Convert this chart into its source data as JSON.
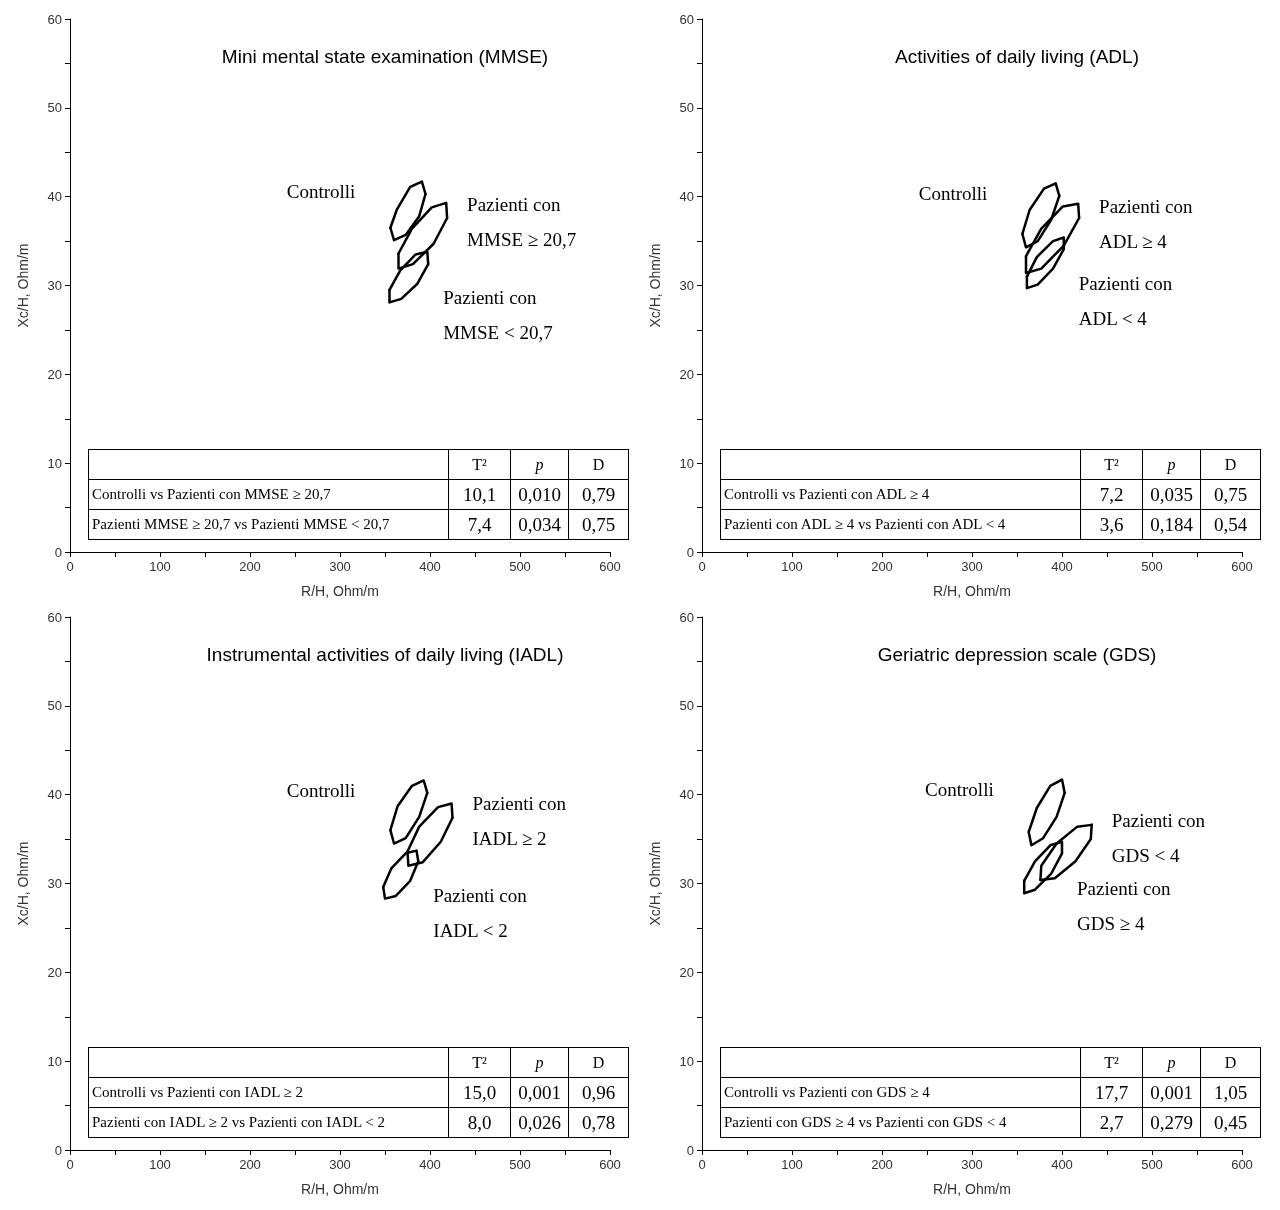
{
  "chart_data": [
    {
      "type": "line",
      "title": "Mini mental state examination (MMSE)",
      "xlabel": "R/H, Ohm/m",
      "ylabel": "Xc/H, Ohm/m",
      "xlim": [
        0,
        600
      ],
      "ylim": [
        0,
        60
      ],
      "xticks": [
        0,
        {
          "value": 50,
          "label": null
        },
        100,
        {
          "value": 150,
          "label": null
        },
        200,
        {
          "value": 250,
          "label": null
        },
        300,
        {
          "value": 350,
          "label": null
        },
        400,
        {
          "value": 450,
          "label": null
        },
        500,
        {
          "value": 550,
          "label": null
        },
        600
      ],
      "yticks": [
        0,
        {
          "value": 5,
          "label": null
        },
        10,
        {
          "value": 15,
          "label": null
        },
        20,
        {
          "value": 25,
          "label": null
        },
        30,
        {
          "value": 35,
          "label": null
        },
        40,
        {
          "value": 45,
          "label": null
        },
        50,
        {
          "value": 55,
          "label": null
        },
        60
      ],
      "marker": "none",
      "line_style": "solid",
      "series": [
        {
          "name": "Controlli",
          "color": "#000000",
          "x": [
            356,
            363,
            378,
            391,
            395
          ],
          "values": [
            36.5,
            38.5,
            41.1,
            41.7,
            40.3
          ]
        },
        {
          "color": "#000000",
          "x": [
            356,
            360,
            373,
            388,
            395
          ],
          "values": [
            36.5,
            35.1,
            35.7,
            37.8,
            40.3
          ]
        },
        {
          "name": "Pazienti con\nMMSE ≥ 20,7",
          "color": "#000000",
          "x": [
            365,
            380,
            402,
            418,
            419
          ],
          "values": [
            33.6,
            36.4,
            38.8,
            39.3,
            37.6
          ]
        },
        {
          "color": "#000000",
          "x": [
            365,
            365,
            381,
            404,
            419
          ],
          "values": [
            33.6,
            31.9,
            32.4,
            34.7,
            37.6
          ]
        },
        {
          "name": "Pazienti con\nMMSE < 20,7",
          "color": "#000000",
          "x": [
            355,
            367,
            384,
            397,
            398
          ],
          "values": [
            29.5,
            31.7,
            33.5,
            33.8,
            32.4
          ]
        },
        {
          "color": "#000000",
          "x": [
            355,
            355,
            368,
            386,
            398
          ],
          "values": [
            29.5,
            28.1,
            28.5,
            30.2,
            32.4
          ]
        }
      ],
      "annotations": [
        "T²",
        "p",
        "D",
        "Controlli vs Pazienti con MMSE ≥ 20,7",
        "10,1",
        "0,010",
        "0,79",
        "Pazienti MMSE ≥ 20,7 vs Pazienti MMSE < 20,7",
        "7,4",
        "0,034",
        "0,75"
      ]
    },
    {
      "type": "line",
      "title": "Activities of daily living (ADL)",
      "xlabel": "R/H, Ohm/m",
      "ylabel": "Xc/H, Ohm/m",
      "xlim": [
        0,
        600
      ],
      "ylim": [
        0,
        60
      ],
      "xticks": [
        0,
        {
          "value": 50,
          "label": null
        },
        100,
        {
          "value": 150,
          "label": null
        },
        200,
        {
          "value": 250,
          "label": null
        },
        300,
        {
          "value": 350,
          "label": null
        },
        400,
        {
          "value": 450,
          "label": null
        },
        500,
        {
          "value": 550,
          "label": null
        },
        600
      ],
      "yticks": [
        0,
        {
          "value": 5,
          "label": null
        },
        10,
        {
          "value": 15,
          "label": null
        },
        20,
        {
          "value": 25,
          "label": null
        },
        30,
        {
          "value": 35,
          "label": null
        },
        40,
        {
          "value": 45,
          "label": null
        },
        50,
        {
          "value": 55,
          "label": null
        },
        60
      ],
      "marker": "none",
      "line_style": "solid",
      "series": [
        {
          "name": "Controlli",
          "color": "#000000",
          "x": [
            356,
            364,
            380,
            393,
            397
          ],
          "values": [
            35.8,
            38.5,
            40.9,
            41.5,
            40.1
          ]
        },
        {
          "color": "#000000",
          "x": [
            356,
            360,
            373,
            388,
            397
          ],
          "values": [
            35.8,
            34.3,
            35.0,
            37.4,
            40.1
          ]
        },
        {
          "name": "Pazienti con\nADL ≥ 4",
          "color": "#000000",
          "x": [
            360,
            377,
            401,
            418,
            419
          ],
          "values": [
            33.3,
            36.4,
            38.9,
            39.2,
            37.6
          ]
        },
        {
          "color": "#000000",
          "x": [
            360,
            360,
            377,
            402,
            419
          ],
          "values": [
            33.3,
            31.4,
            31.9,
            34.5,
            37.6
          ]
        },
        {
          "name": "Pazienti con\nADL < 4",
          "color": "#000000",
          "x": [
            361,
            372,
            390,
            402,
            402
          ],
          "values": [
            31.0,
            33.2,
            35.0,
            35.4,
            34.1
          ]
        },
        {
          "color": "#000000",
          "x": [
            361,
            361,
            373,
            390,
            402
          ],
          "values": [
            31.0,
            29.7,
            30.1,
            31.9,
            34.1
          ]
        }
      ],
      "annotations": [
        "T²",
        "p",
        "D",
        "Controlli vs Pazienti con ADL ≥ 4",
        "7,2",
        "0,035",
        "0,75",
        "Pazienti con ADL ≥ 4 vs Pazienti con ADL < 4",
        "3,6",
        "0,184",
        "0,54"
      ]
    },
    {
      "type": "line",
      "title": "Instrumental activities of daily living (IADL)",
      "xlabel": "R/H, Ohm/m",
      "ylabel": "Xc/H, Ohm/m",
      "xlim": [
        0,
        600
      ],
      "ylim": [
        0,
        60
      ],
      "xticks": [
        0,
        {
          "value": 50,
          "label": null
        },
        100,
        {
          "value": 150,
          "label": null
        },
        200,
        {
          "value": 250,
          "label": null
        },
        300,
        {
          "value": 350,
          "label": null
        },
        400,
        {
          "value": 450,
          "label": null
        },
        500,
        {
          "value": 550,
          "label": null
        },
        600
      ],
      "yticks": [
        0,
        {
          "value": 5,
          "label": null
        },
        10,
        {
          "value": 15,
          "label": null
        },
        20,
        {
          "value": 25,
          "label": null
        },
        30,
        {
          "value": 35,
          "label": null
        },
        40,
        {
          "value": 45,
          "label": null
        },
        50,
        {
          "value": 55,
          "label": null
        },
        60
      ],
      "marker": "none",
      "line_style": "solid",
      "series": [
        {
          "name": "Controlli",
          "color": "#000000",
          "x": [
            356,
            364,
            380,
            393,
            397
          ],
          "values": [
            36.0,
            38.7,
            41.0,
            41.6,
            40.2
          ]
        },
        {
          "color": "#000000",
          "x": [
            356,
            360,
            373,
            388,
            397
          ],
          "values": [
            36.0,
            34.5,
            35.1,
            37.5,
            40.2
          ]
        },
        {
          "name": "Pazienti con\nIADL ≥ 2",
          "color": "#000000",
          "x": [
            375,
            388,
            409,
            424,
            425
          ],
          "values": [
            33.6,
            36.4,
            38.6,
            39.0,
            37.4
          ]
        },
        {
          "color": "#000000",
          "x": [
            375,
            376,
            392,
            412,
            425
          ],
          "values": [
            33.6,
            32.0,
            32.4,
            34.7,
            37.4
          ]
        },
        {
          "name": "Pazienti con\nIADL < 2",
          "color": "#000000",
          "x": [
            348,
            357,
            373,
            385,
            387
          ],
          "values": [
            29.6,
            31.7,
            33.4,
            33.7,
            32.5
          ]
        },
        {
          "color": "#000000",
          "x": [
            348,
            350,
            362,
            378,
            387
          ],
          "values": [
            29.6,
            28.3,
            28.6,
            30.3,
            32.5
          ]
        }
      ],
      "annotations": [
        "T²",
        "p",
        "D",
        "Controlli vs Pazienti con IADL ≥ 2",
        "15,0",
        "0,001",
        "0,96",
        "Pazienti con IADL ≥ 2 vs Pazienti con IADL < 2",
        "8,0",
        "0,026",
        "0,78"
      ]
    },
    {
      "type": "line",
      "title": "Geriatric depression scale (GDS)",
      "xlabel": "R/H, Ohm/m",
      "ylabel": "Xc/H, Ohm/m",
      "xlim": [
        0,
        600
      ],
      "ylim": [
        0,
        60
      ],
      "xticks": [
        0,
        {
          "value": 50,
          "label": null
        },
        100,
        {
          "value": 150,
          "label": null
        },
        200,
        {
          "value": 250,
          "label": null
        },
        300,
        {
          "value": 350,
          "label": null
        },
        400,
        {
          "value": 450,
          "label": null
        },
        500,
        {
          "value": 550,
          "label": null
        },
        600
      ],
      "yticks": [
        0,
        {
          "value": 5,
          "label": null
        },
        10,
        {
          "value": 15,
          "label": null
        },
        20,
        {
          "value": 25,
          "label": null
        },
        30,
        {
          "value": 35,
          "label": null
        },
        40,
        {
          "value": 45,
          "label": null
        },
        50,
        {
          "value": 55,
          "label": null
        },
        60
      ],
      "marker": "none",
      "line_style": "solid",
      "series": [
        {
          "name": "Controlli",
          "color": "#000000",
          "x": [
            363,
            372,
            387,
            400,
            403
          ],
          "values": [
            35.8,
            38.5,
            41.0,
            41.7,
            40.2
          ]
        },
        {
          "color": "#000000",
          "x": [
            363,
            366,
            379,
            394,
            403
          ],
          "values": [
            35.8,
            34.3,
            35.1,
            37.5,
            40.2
          ]
        },
        {
          "name": "Pazienti con\nGDS < 4",
          "color": "#000000",
          "x": [
            376,
            377,
            394,
            417,
            433
          ],
          "values": [
            30.4,
            32.0,
            34.5,
            36.4,
            36.6
          ]
        },
        {
          "color": "#000000",
          "x": [
            376,
            392,
            415,
            432,
            433
          ],
          "values": [
            30.4,
            30.6,
            32.5,
            35.0,
            36.6
          ]
        },
        {
          "name": "Pazienti con\nGDS ≥ 4",
          "color": "#000000",
          "x": [
            358,
            370,
            387,
            400,
            400
          ],
          "values": [
            30.3,
            32.5,
            34.3,
            34.7,
            33.4
          ]
        },
        {
          "color": "#000000",
          "x": [
            358,
            358,
            370,
            388,
            400
          ],
          "values": [
            30.3,
            28.9,
            29.3,
            31.1,
            33.4
          ]
        }
      ],
      "annotations": [
        "T²",
        "p",
        "D",
        "Controlli vs Pazienti con GDS ≥ 4",
        "17,7",
        "0,001",
        "1,05",
        "Pazienti con GDS ≥ 4 vs Pazienti con GDS < 4",
        "2,7",
        "0,279",
        "0,45"
      ]
    }
  ]
}
